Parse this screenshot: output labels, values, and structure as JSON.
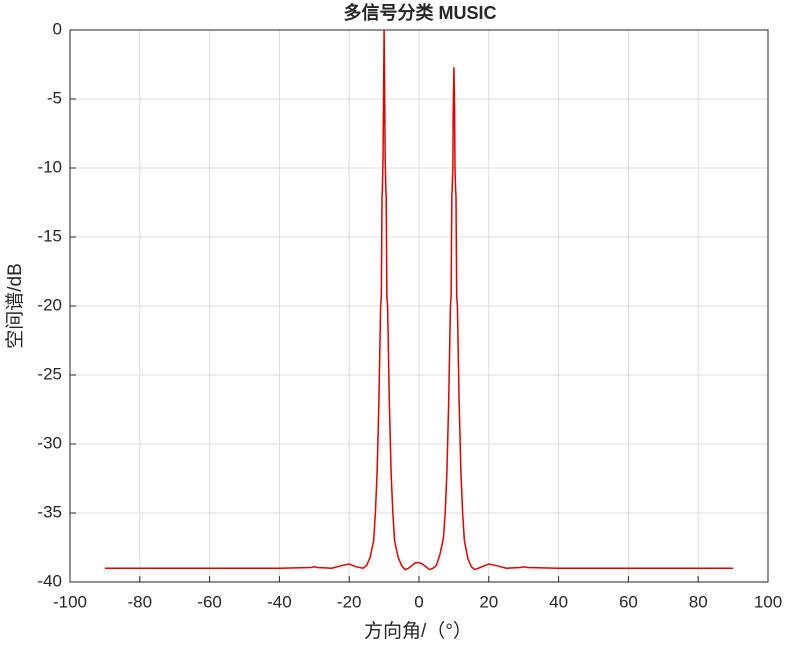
{
  "chart_data": {
    "type": "line",
    "title": "多信号分类 MUSIC",
    "x_label": "方向角/（°）",
    "y_label": "空间谱/dB",
    "color": "#e00000",
    "grid": true,
    "xlim": [
      -100,
      100
    ],
    "ylim": [
      -40,
      0
    ],
    "xticks": [
      -100,
      -80,
      -60,
      -40,
      -20,
      0,
      20,
      40,
      60,
      80,
      100
    ],
    "yticks": [
      -40,
      -35,
      -30,
      -25,
      -20,
      -15,
      -10,
      -5,
      0
    ],
    "x": [
      -90,
      -40,
      -31,
      -30,
      -29,
      -25,
      -22,
      -20,
      -18,
      -16,
      -15,
      -14,
      -13,
      -12.5,
      -12,
      -11.5,
      -11,
      -10.8,
      -10.6,
      -10.5,
      -10.3,
      -10.2,
      -10,
      -9.8,
      -9.7,
      -9.5,
      -9.4,
      -9.2,
      -9,
      -8.5,
      -8,
      -7.5,
      -7,
      -6,
      -5,
      -4,
      -3,
      -2,
      -1,
      0,
      1,
      2,
      3,
      4,
      5,
      6,
      7,
      7.5,
      8,
      8.5,
      9,
      9.2,
      9.4,
      9.5,
      9.7,
      9.8,
      10,
      10.2,
      10.3,
      10.5,
      10.6,
      10.8,
      11,
      11.5,
      12,
      12.5,
      13,
      14,
      15,
      16,
      18,
      20,
      22,
      25,
      29,
      30,
      31,
      40,
      90
    ],
    "values": [
      -39,
      -39,
      -38.95,
      -38.9,
      -38.95,
      -39,
      -38.8,
      -38.7,
      -38.9,
      -39,
      -38.8,
      -38.2,
      -37,
      -35,
      -32,
      -27,
      -20,
      -19.3,
      -12,
      -11.6,
      -9.3,
      -6,
      0,
      -6,
      -9.3,
      -11.6,
      -12,
      -19.3,
      -20,
      -27,
      -32,
      -35,
      -37,
      -38.2,
      -38.8,
      -39.1,
      -39,
      -38.8,
      -38.6,
      -38.6,
      -38.7,
      -38.9,
      -39.1,
      -39,
      -38.8,
      -38,
      -36.8,
      -35,
      -32,
      -27,
      -20,
      -19.3,
      -12,
      -11.6,
      -9.9,
      -6,
      -2.7,
      -6,
      -9.9,
      -11.6,
      -12,
      -19.3,
      -20,
      -27,
      -32,
      -35,
      -37,
      -38.3,
      -38.9,
      -39.1,
      -38.9,
      -38.7,
      -38.8,
      -39,
      -38.95,
      -38.9,
      -38.95,
      -39,
      -39
    ]
  }
}
